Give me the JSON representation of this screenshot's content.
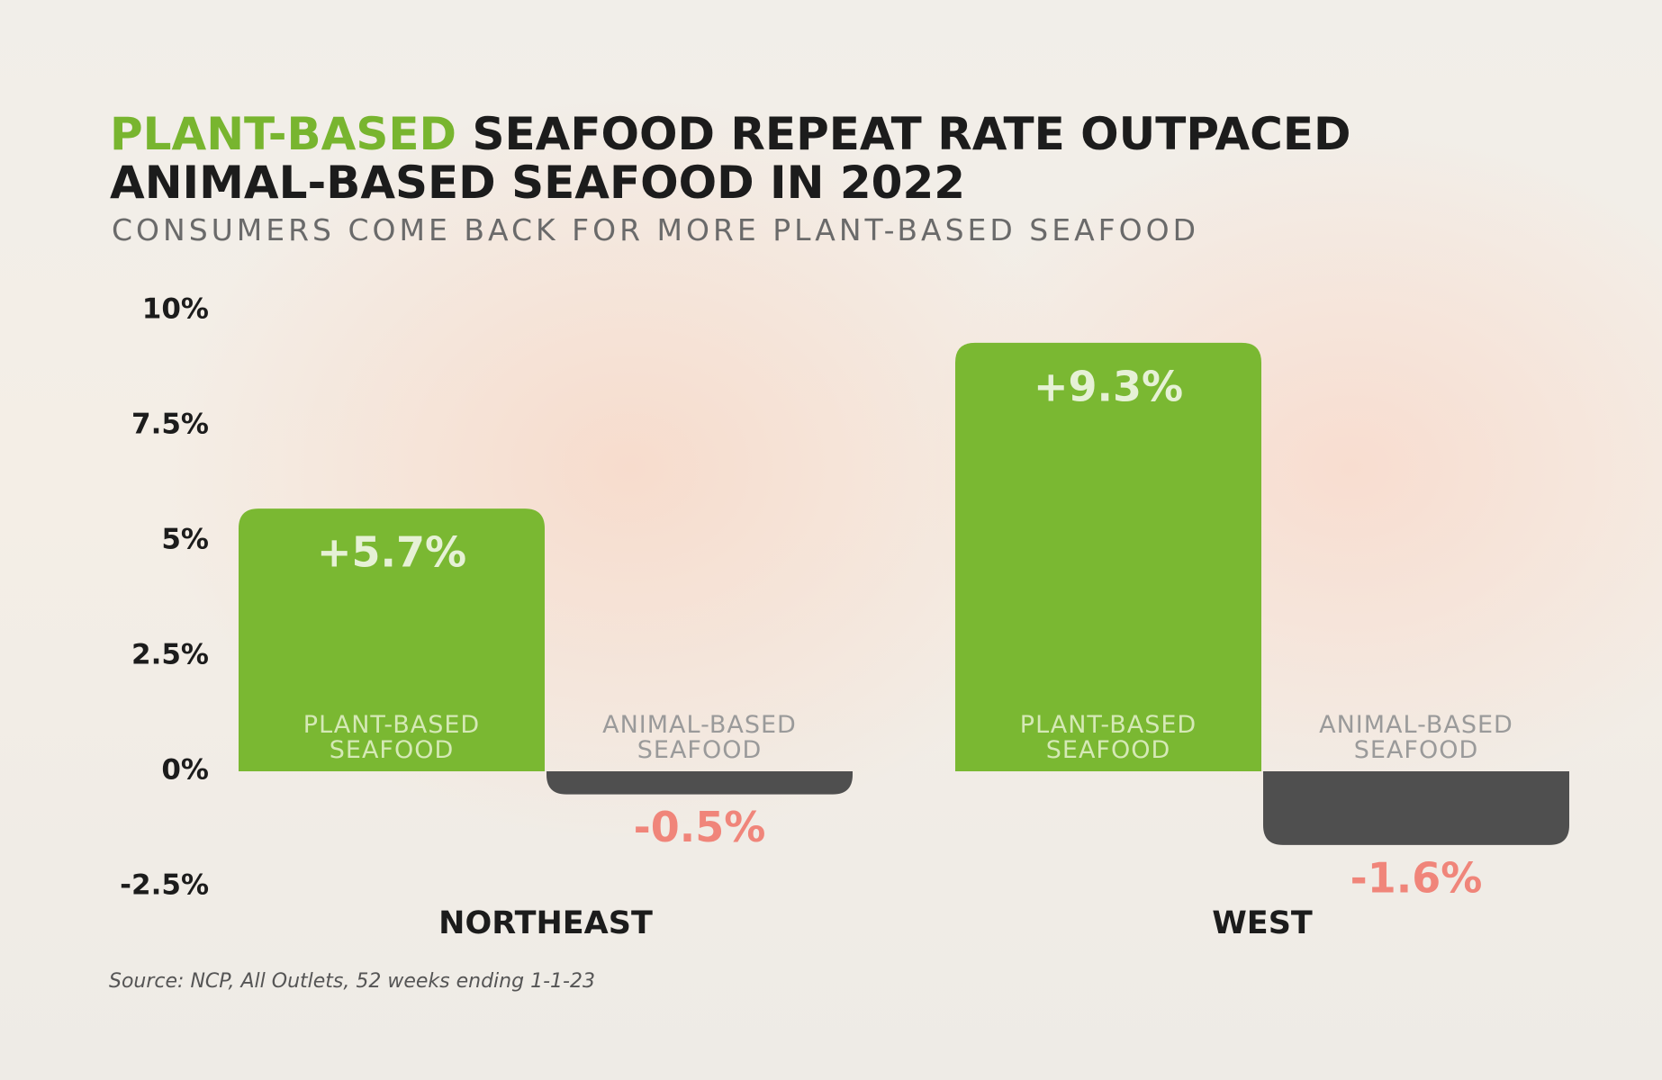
{
  "chart_data": {
    "type": "bar",
    "title_highlight": "PLANT-BASED",
    "title_lines": [
      "SEAFOOD REPEAT RATE OUTPACED",
      "ANIMAL-BASED SEAFOOD IN 2022"
    ],
    "subtitle": "CONSUMERS COME BACK FOR MORE PLANT-BASED SEAFOOD",
    "categories": [
      "NORTHEAST",
      "WEST"
    ],
    "series": [
      {
        "name": "PLANT-BASED SEAFOOD",
        "color": "#7ab832",
        "values": [
          5.7,
          9.3
        ],
        "value_labels": [
          "+5.7%",
          "+9.3%"
        ]
      },
      {
        "name": "ANIMAL-BASED SEAFOOD",
        "color": "#4f4f4f",
        "values": [
          -0.5,
          -1.6
        ],
        "value_labels": [
          "-0.5%",
          "-1.6%"
        ]
      }
    ],
    "ylim": [
      -2.5,
      10
    ],
    "yticks": [
      {
        "value": 10,
        "label": "10%"
      },
      {
        "value": 7.5,
        "label": "7.5%"
      },
      {
        "value": 5,
        "label": "5%"
      },
      {
        "value": 2.5,
        "label": "2.5%"
      },
      {
        "value": 0,
        "label": "0%"
      },
      {
        "value": -2.5,
        "label": "-2.5%"
      }
    ],
    "grid": false,
    "source": "Source: NCP, All Outlets, 52 weeks ending 1-1-23"
  }
}
